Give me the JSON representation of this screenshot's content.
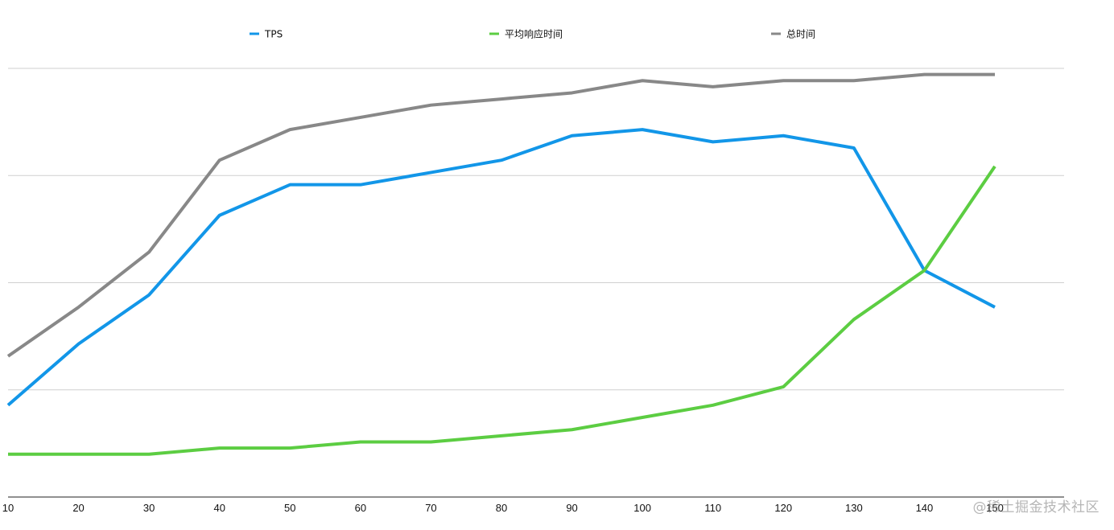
{
  "chart_data": {
    "type": "line",
    "x": [
      10,
      20,
      30,
      40,
      50,
      60,
      70,
      80,
      90,
      100,
      110,
      120,
      130,
      140,
      150
    ],
    "series": [
      {
        "name": "TPS",
        "color": "#1296E8",
        "values": [
          15,
          25,
          33,
          46,
          51,
          51,
          53,
          55,
          59,
          60,
          58,
          59,
          57,
          37,
          31
        ]
      },
      {
        "name": "平均响应时间",
        "color": "#5CCD42",
        "values": [
          7,
          7,
          7,
          8,
          8,
          9,
          9,
          10,
          11,
          13,
          15,
          18,
          29,
          37,
          54
        ]
      },
      {
        "name": "总时间",
        "color": "#888888",
        "values": [
          23,
          31,
          40,
          55,
          60,
          62,
          64,
          65,
          66,
          68,
          67,
          68,
          68,
          69,
          69
        ]
      }
    ],
    "ylim": [
      0,
      70
    ],
    "grid": true,
    "legend_position": "top",
    "title": "",
    "xlabel": "",
    "ylabel": ""
  },
  "watermark": "@稀土掘金技术社区"
}
